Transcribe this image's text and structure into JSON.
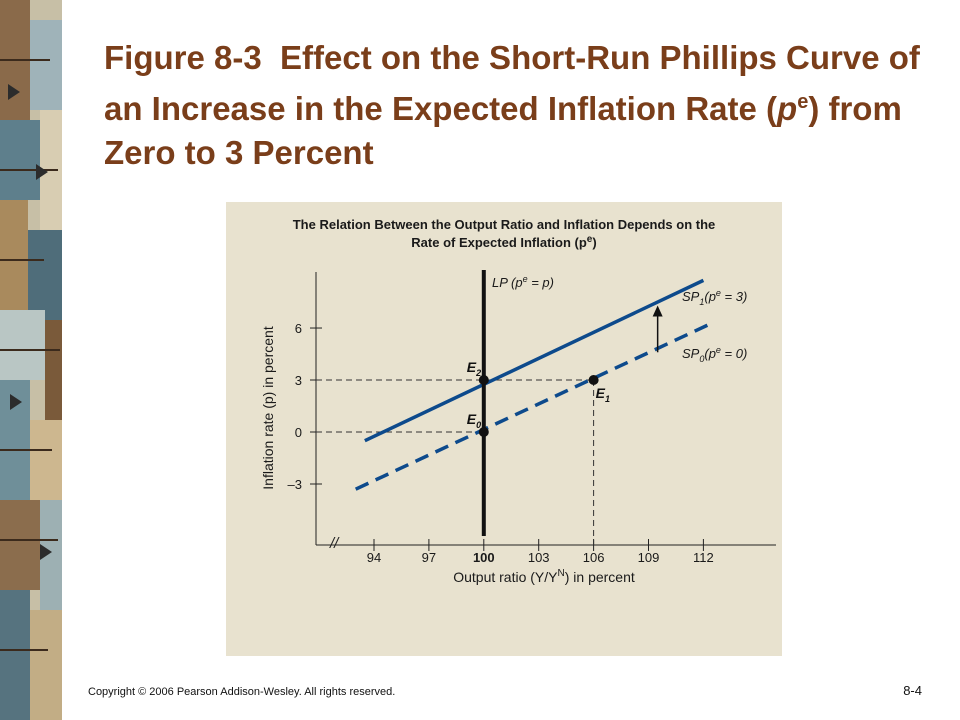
{
  "slide": {
    "title_bold": "Figure 8-3",
    "title_rest": "Effect on the Short-Run Phillips Curve of an Increase in the Expected Inflation Rate (",
    "title_p": "p",
    "title_sup": "e",
    "title_end": ") from Zero to 3 Percent",
    "footer": "Copyright © 2006 Pearson Addison-Wesley. All rights reserved.",
    "page_number": "8-4"
  },
  "colors": {
    "panel_bg": "#e8e2cf",
    "sp_line": "#0d4a8c",
    "lp_line": "#111111",
    "title": "#7a3e1a"
  },
  "chart_data": {
    "type": "line",
    "title_line1": "The Relation Between the Output Ratio and Inflation Depends on the",
    "title_line2": "Rate of Expected Inflation (p",
    "title_sup": "e",
    "title_close": ")",
    "xlabel": "Output ratio (Y/Y",
    "xlabel_sup": "N",
    "xlabel_close": ") in percent",
    "ylabel": "Inflation rate (p) in percent",
    "x_ticks": [
      94,
      97,
      100,
      103,
      106,
      109,
      112
    ],
    "x_tick_labels": [
      "94",
      "97",
      "100",
      "103",
      "106",
      "109",
      "112"
    ],
    "y_ticks": [
      6,
      3,
      0,
      -3
    ],
    "y_tick_labels": [
      "6",
      "3",
      "0",
      "–3"
    ],
    "xlim": [
      93,
      115
    ],
    "ylim": [
      -6,
      9
    ],
    "series": [
      {
        "name": "SP1(pe = 3)",
        "label_main": "SP",
        "label_sub": "1",
        "label_rest": "(p",
        "label_sup": "e",
        "label_end": " = 3)",
        "style": "solid",
        "x": [
          93.5,
          112.0
        ],
        "y": [
          -0.5,
          8.75
        ]
      },
      {
        "name": "SP0(pe = 0)",
        "label_main": "SP",
        "label_sub": "0",
        "label_rest": "(p",
        "label_sup": "e",
        "label_end": " = 0)",
        "style": "dashed",
        "x": [
          93.0,
          112.5
        ],
        "y": [
          -3.3,
          6.3
        ]
      }
    ],
    "vertical_line": {
      "x": 100,
      "label_main": "LP (p",
      "label_sup": "e",
      "label_end": " = p)"
    },
    "points": [
      {
        "label": "E",
        "sub": "2",
        "x": 100,
        "y": 3
      },
      {
        "label": "E",
        "sub": "0",
        "x": 100,
        "y": 0
      },
      {
        "label": "E",
        "sub": "1",
        "x": 106,
        "y": 3
      }
    ],
    "arrow": {
      "x": 109.5,
      "from_y": 4.6,
      "to_y": 7.3
    },
    "axis_break": "//"
  }
}
